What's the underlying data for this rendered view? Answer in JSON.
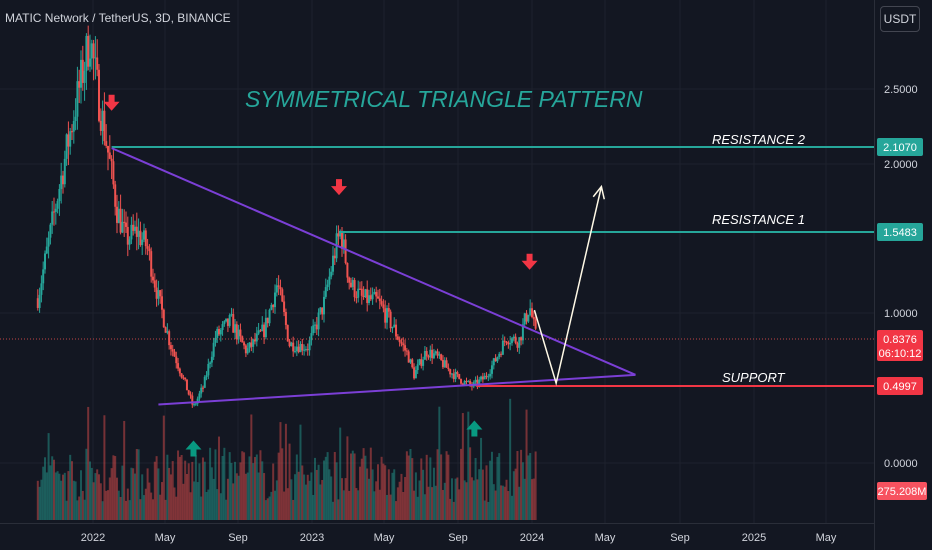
{
  "header": {
    "title": "MATIC Network / TetherUS, 3D, BINANCE"
  },
  "toolbar": {
    "currency_button": "USDT"
  },
  "chart_data": {
    "type": "candlestick",
    "title": "SYMMETRICAL TRIANGLE PATTERN",
    "colors": {
      "up": "#26a69a",
      "down": "#ef5350",
      "trendline": "#7b3fd6",
      "level": "#26a69a",
      "support_level": "#f23645",
      "projection": "#fff9e6",
      "title": "#26a69a",
      "background": "#131722"
    },
    "y_axis": {
      "ticks": [
        "2.5000",
        "2.0000",
        "1.0000",
        "0.0000"
      ]
    },
    "x_axis": {
      "ticks": [
        "2022",
        "May",
        "Sep",
        "2023",
        "May",
        "Sep",
        "2024",
        "May",
        "Sep",
        "2025",
        "May"
      ]
    },
    "price_labels": {
      "resistance2": "2.1070",
      "resistance1": "1.5483",
      "current": "0.8376",
      "countdown": "06:10:12",
      "support": "0.4997",
      "volume": "275.208M"
    },
    "annotations": {
      "resistance2": "RESISTANCE 2",
      "resistance1": "RESISTANCE 1",
      "support": "SUPPORT"
    },
    "close_path": [
      [
        "2021-10-01",
        1.1
      ],
      [
        "2021-11-01",
        1.75
      ],
      [
        "2021-12-01",
        2.35
      ],
      [
        "2021-12-27",
        2.85
      ],
      [
        "2022-01-10",
        2.45
      ],
      [
        "2022-01-25",
        2.1
      ],
      [
        "2022-02-10",
        1.7
      ],
      [
        "2022-02-25",
        1.5
      ],
      [
        "2022-03-15",
        1.55
      ],
      [
        "2022-04-01",
        1.45
      ],
      [
        "2022-04-20",
        1.1
      ],
      [
        "2022-05-10",
        0.8
      ],
      [
        "2022-06-01",
        0.55
      ],
      [
        "2022-06-18",
        0.36
      ],
      [
        "2022-07-05",
        0.5
      ],
      [
        "2022-07-25",
        0.85
      ],
      [
        "2022-08-20",
        0.95
      ],
      [
        "2022-09-15",
        0.75
      ],
      [
        "2022-10-15",
        0.9
      ],
      [
        "2022-11-05",
        1.2
      ],
      [
        "2022-11-25",
        0.8
      ],
      [
        "2022-12-25",
        0.78
      ],
      [
        "2023-01-20",
        1.05
      ],
      [
        "2023-02-10",
        1.45
      ],
      [
        "2023-02-18",
        1.55
      ],
      [
        "2023-03-05",
        1.2
      ],
      [
        "2023-03-25",
        1.1
      ],
      [
        "2023-04-20",
        1.08
      ],
      [
        "2023-05-15",
        0.92
      ],
      [
        "2023-06-10",
        0.72
      ],
      [
        "2023-06-20",
        0.58
      ],
      [
        "2023-07-10",
        0.75
      ],
      [
        "2023-07-25",
        0.72
      ],
      [
        "2023-08-20",
        0.6
      ],
      [
        "2023-09-10",
        0.53
      ],
      [
        "2023-09-25",
        0.5
      ],
      [
        "2023-10-15",
        0.56
      ],
      [
        "2023-11-01",
        0.68
      ],
      [
        "2023-11-20",
        0.85
      ],
      [
        "2023-12-10",
        0.82
      ],
      [
        "2023-12-28",
        1.05
      ],
      [
        "2024-01-08",
        0.8376
      ]
    ],
    "drawings": {
      "upper_trendline": [
        [
          "2022-02-01",
          2.1
        ],
        [
          "2024-06-20",
          0.58
        ]
      ],
      "lower_trendline": [
        [
          "2022-04-20",
          0.38
        ],
        [
          "2024-06-20",
          0.58
        ]
      ],
      "resistance2": {
        "from": "2022-02-01",
        "price": 2.107
      },
      "resistance1": {
        "from": "2023-02-15",
        "price": 1.5483
      },
      "support": {
        "from": "2023-10-01",
        "price": 0.4997
      },
      "projection": [
        [
          "2024-01-05",
          1.02
        ],
        [
          "2024-02-10",
          0.52
        ],
        [
          "2024-04-25",
          1.85
        ]
      ],
      "down_arrows": [
        [
          "2022-02-01",
          2.38
        ],
        [
          "2023-02-15",
          1.82
        ],
        [
          "2023-12-28",
          1.32
        ]
      ],
      "up_arrows": [
        [
          "2022-06-18",
          0.12
        ],
        [
          "2023-09-28",
          0.25
        ]
      ]
    }
  }
}
